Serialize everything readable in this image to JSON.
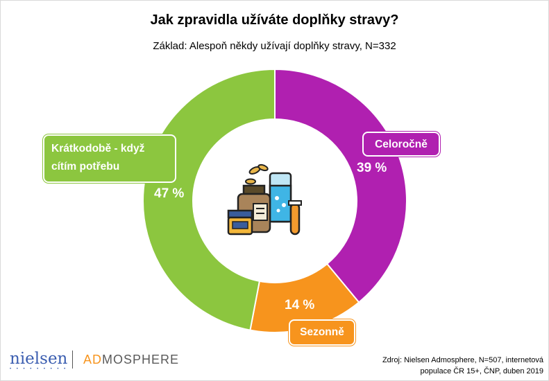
{
  "chart_data": {
    "type": "pie",
    "title": "Jak zpravidla užíváte doplňky stravy?",
    "subtitle": "Základ: Alespoň někdy užívají doplňky stravy, N=332",
    "segments": [
      {
        "label": "Celoročně",
        "value": 39,
        "value_label": "39 %",
        "color": "#b020b0"
      },
      {
        "label": "Sezonně",
        "value": 14,
        "value_label": "14 %",
        "color": "#f7941d"
      },
      {
        "label": "Krátkodobě - když cítím potřebu",
        "value": 47,
        "value_label": "47 %",
        "color": "#8cc63f"
      }
    ],
    "center_icon": "supplements-icon"
  },
  "footer": {
    "logo_nielsen": "nielsen",
    "logo_dots": "• • • • • • • • •",
    "logo_ad": "AD",
    "logo_rest": "MOSPHERE",
    "source_line1": "Zdroj: Nielsen Admosphere, N=507, internetová",
    "source_line2": "populace ČR 15+, ČNP, duben 2019"
  }
}
